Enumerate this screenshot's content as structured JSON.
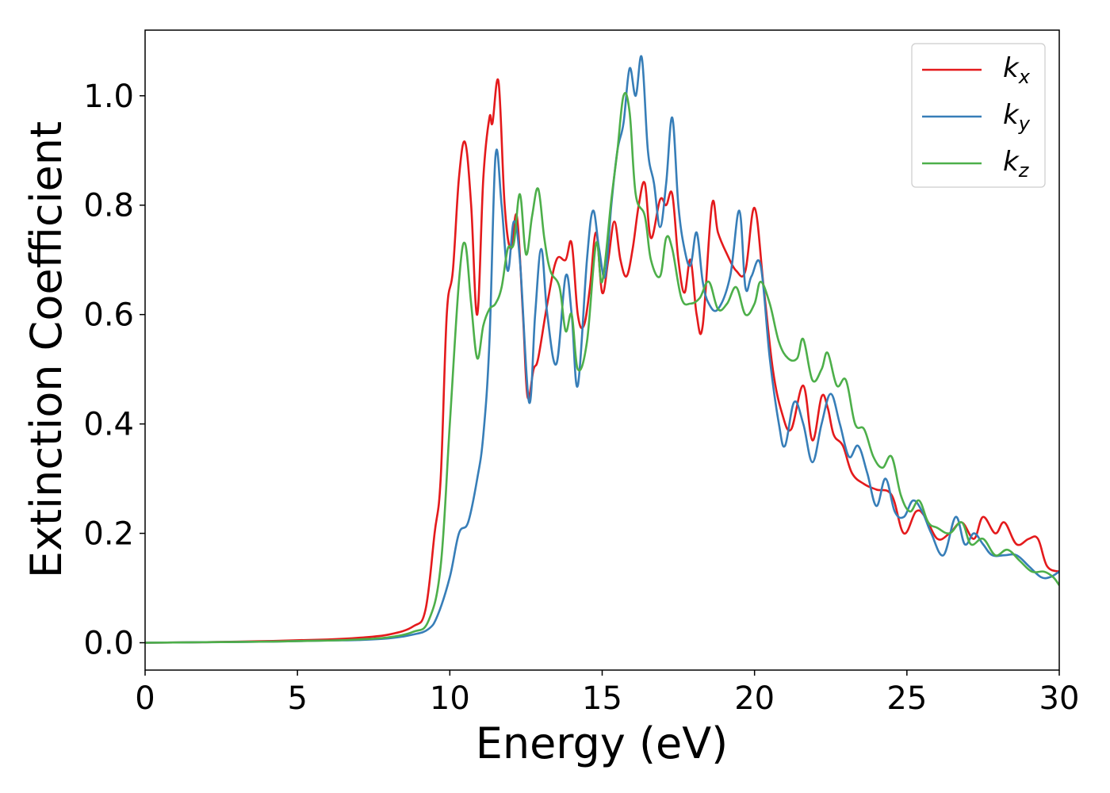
{
  "chart_data": {
    "type": "line",
    "xlabel": "Energy (eV)",
    "ylabel": "Extinction Coefficient",
    "xlim": [
      0,
      30
    ],
    "ylim": [
      -0.05,
      1.12
    ],
    "x_ticks": [
      "0",
      "5",
      "10",
      "15",
      "20",
      "25",
      "30"
    ],
    "y_ticks": [
      "0.0",
      "0.2",
      "0.4",
      "0.6",
      "0.8",
      "1.0"
    ],
    "grid": false,
    "legend_position": "top-right",
    "series": [
      {
        "name": "k",
        "name_sub": "x",
        "color": "#e41a1c",
        "points": [
          [
            0,
            0.0
          ],
          [
            2,
            0.001
          ],
          [
            4,
            0.003
          ],
          [
            6,
            0.006
          ],
          [
            7,
            0.009
          ],
          [
            8,
            0.015
          ],
          [
            8.8,
            0.03
          ],
          [
            9.2,
            0.06
          ],
          [
            9.5,
            0.2
          ],
          [
            9.7,
            0.3
          ],
          [
            9.9,
            0.6
          ],
          [
            10.1,
            0.68
          ],
          [
            10.3,
            0.85
          ],
          [
            10.5,
            0.915
          ],
          [
            10.7,
            0.8
          ],
          [
            10.9,
            0.6
          ],
          [
            11.1,
            0.85
          ],
          [
            11.3,
            0.96
          ],
          [
            11.4,
            0.95
          ],
          [
            11.6,
            1.025
          ],
          [
            11.8,
            0.8
          ],
          [
            12.0,
            0.72
          ],
          [
            12.2,
            0.78
          ],
          [
            12.4,
            0.6
          ],
          [
            12.55,
            0.45
          ],
          [
            12.75,
            0.5
          ],
          [
            12.9,
            0.52
          ],
          [
            13.2,
            0.62
          ],
          [
            13.5,
            0.7
          ],
          [
            13.8,
            0.7
          ],
          [
            14.0,
            0.73
          ],
          [
            14.2,
            0.6
          ],
          [
            14.4,
            0.58
          ],
          [
            14.6,
            0.65
          ],
          [
            14.8,
            0.75
          ],
          [
            15.0,
            0.64
          ],
          [
            15.2,
            0.7
          ],
          [
            15.4,
            0.77
          ],
          [
            15.6,
            0.7
          ],
          [
            15.8,
            0.67
          ],
          [
            16.0,
            0.72
          ],
          [
            16.2,
            0.8
          ],
          [
            16.4,
            0.84
          ],
          [
            16.6,
            0.74
          ],
          [
            16.9,
            0.81
          ],
          [
            17.1,
            0.8
          ],
          [
            17.3,
            0.82
          ],
          [
            17.5,
            0.7
          ],
          [
            17.7,
            0.64
          ],
          [
            17.9,
            0.7
          ],
          [
            18.1,
            0.6
          ],
          [
            18.3,
            0.58
          ],
          [
            18.6,
            0.8
          ],
          [
            18.8,
            0.75
          ],
          [
            19.1,
            0.71
          ],
          [
            19.4,
            0.68
          ],
          [
            19.7,
            0.68
          ],
          [
            20.0,
            0.795
          ],
          [
            20.3,
            0.65
          ],
          [
            20.6,
            0.5
          ],
          [
            20.9,
            0.42
          ],
          [
            21.2,
            0.39
          ],
          [
            21.6,
            0.47
          ],
          [
            21.9,
            0.37
          ],
          [
            22.2,
            0.45
          ],
          [
            22.4,
            0.43
          ],
          [
            22.6,
            0.38
          ],
          [
            22.9,
            0.36
          ],
          [
            23.2,
            0.31
          ],
          [
            23.6,
            0.29
          ],
          [
            24.0,
            0.28
          ],
          [
            24.5,
            0.27
          ],
          [
            24.9,
            0.2
          ],
          [
            25.3,
            0.24
          ],
          [
            25.6,
            0.23
          ],
          [
            26.0,
            0.19
          ],
          [
            26.4,
            0.2
          ],
          [
            26.8,
            0.22
          ],
          [
            27.2,
            0.19
          ],
          [
            27.5,
            0.23
          ],
          [
            27.9,
            0.2
          ],
          [
            28.2,
            0.22
          ],
          [
            28.6,
            0.18
          ],
          [
            29.0,
            0.19
          ],
          [
            29.3,
            0.19
          ],
          [
            29.6,
            0.14
          ],
          [
            30.0,
            0.13
          ]
        ]
      },
      {
        "name": "k",
        "name_sub": "y",
        "color": "#377eb8",
        "points": [
          [
            0,
            0.0
          ],
          [
            2,
            0.001
          ],
          [
            4,
            0.002
          ],
          [
            6,
            0.004
          ],
          [
            7,
            0.005
          ],
          [
            8,
            0.008
          ],
          [
            8.8,
            0.015
          ],
          [
            9.3,
            0.025
          ],
          [
            9.6,
            0.05
          ],
          [
            10.0,
            0.12
          ],
          [
            10.3,
            0.2
          ],
          [
            10.6,
            0.22
          ],
          [
            10.9,
            0.3
          ],
          [
            11.1,
            0.38
          ],
          [
            11.3,
            0.55
          ],
          [
            11.5,
            0.89
          ],
          [
            11.7,
            0.8
          ],
          [
            11.9,
            0.68
          ],
          [
            12.1,
            0.77
          ],
          [
            12.3,
            0.7
          ],
          [
            12.6,
            0.44
          ],
          [
            12.8,
            0.6
          ],
          [
            13.0,
            0.72
          ],
          [
            13.2,
            0.6
          ],
          [
            13.5,
            0.51
          ],
          [
            13.8,
            0.67
          ],
          [
            14.0,
            0.6
          ],
          [
            14.2,
            0.47
          ],
          [
            14.5,
            0.7
          ],
          [
            14.7,
            0.79
          ],
          [
            14.9,
            0.72
          ],
          [
            15.1,
            0.67
          ],
          [
            15.3,
            0.8
          ],
          [
            15.5,
            0.9
          ],
          [
            15.7,
            0.95
          ],
          [
            15.9,
            1.05
          ],
          [
            16.1,
            1.0
          ],
          [
            16.3,
            1.07
          ],
          [
            16.5,
            0.9
          ],
          [
            16.7,
            0.84
          ],
          [
            16.9,
            0.76
          ],
          [
            17.1,
            0.84
          ],
          [
            17.3,
            0.96
          ],
          [
            17.5,
            0.8
          ],
          [
            17.7,
            0.72
          ],
          [
            17.9,
            0.69
          ],
          [
            18.1,
            0.75
          ],
          [
            18.3,
            0.66
          ],
          [
            18.5,
            0.62
          ],
          [
            18.8,
            0.61
          ],
          [
            19.2,
            0.67
          ],
          [
            19.5,
            0.79
          ],
          [
            19.7,
            0.65
          ],
          [
            19.9,
            0.67
          ],
          [
            20.2,
            0.69
          ],
          [
            20.5,
            0.52
          ],
          [
            20.8,
            0.4
          ],
          [
            21.0,
            0.36
          ],
          [
            21.3,
            0.44
          ],
          [
            21.6,
            0.4
          ],
          [
            21.9,
            0.33
          ],
          [
            22.2,
            0.4
          ],
          [
            22.5,
            0.455
          ],
          [
            22.8,
            0.4
          ],
          [
            23.1,
            0.34
          ],
          [
            23.4,
            0.36
          ],
          [
            23.7,
            0.31
          ],
          [
            24.0,
            0.25
          ],
          [
            24.3,
            0.3
          ],
          [
            24.6,
            0.24
          ],
          [
            24.9,
            0.23
          ],
          [
            25.2,
            0.26
          ],
          [
            25.5,
            0.24
          ],
          [
            25.8,
            0.2
          ],
          [
            26.2,
            0.16
          ],
          [
            26.6,
            0.23
          ],
          [
            26.9,
            0.18
          ],
          [
            27.2,
            0.2
          ],
          [
            27.5,
            0.18
          ],
          [
            27.8,
            0.16
          ],
          [
            28.2,
            0.16
          ],
          [
            28.6,
            0.16
          ],
          [
            29.0,
            0.14
          ],
          [
            29.4,
            0.12
          ],
          [
            29.7,
            0.12
          ],
          [
            30.0,
            0.13
          ]
        ]
      },
      {
        "name": "k",
        "name_sub": "z",
        "color": "#4daf4a",
        "points": [
          [
            0,
            0.0
          ],
          [
            2,
            0.001
          ],
          [
            4,
            0.002
          ],
          [
            6,
            0.004
          ],
          [
            7,
            0.006
          ],
          [
            8,
            0.01
          ],
          [
            8.8,
            0.02
          ],
          [
            9.3,
            0.04
          ],
          [
            9.7,
            0.14
          ],
          [
            10.0,
            0.4
          ],
          [
            10.3,
            0.66
          ],
          [
            10.5,
            0.73
          ],
          [
            10.7,
            0.62
          ],
          [
            10.9,
            0.52
          ],
          [
            11.1,
            0.58
          ],
          [
            11.3,
            0.61
          ],
          [
            11.5,
            0.62
          ],
          [
            11.7,
            0.65
          ],
          [
            11.9,
            0.72
          ],
          [
            12.1,
            0.73
          ],
          [
            12.3,
            0.82
          ],
          [
            12.5,
            0.71
          ],
          [
            12.7,
            0.78
          ],
          [
            12.9,
            0.83
          ],
          [
            13.1,
            0.74
          ],
          [
            13.3,
            0.68
          ],
          [
            13.6,
            0.65
          ],
          [
            13.8,
            0.57
          ],
          [
            14.0,
            0.6
          ],
          [
            14.2,
            0.5
          ],
          [
            14.5,
            0.55
          ],
          [
            14.8,
            0.73
          ],
          [
            15.0,
            0.66
          ],
          [
            15.3,
            0.81
          ],
          [
            15.5,
            0.9
          ],
          [
            15.7,
            1.0
          ],
          [
            15.9,
            0.97
          ],
          [
            16.1,
            0.82
          ],
          [
            16.4,
            0.78
          ],
          [
            16.6,
            0.7
          ],
          [
            16.9,
            0.67
          ],
          [
            17.1,
            0.74
          ],
          [
            17.3,
            0.72
          ],
          [
            17.6,
            0.63
          ],
          [
            17.9,
            0.62
          ],
          [
            18.2,
            0.63
          ],
          [
            18.5,
            0.66
          ],
          [
            18.8,
            0.61
          ],
          [
            19.1,
            0.62
          ],
          [
            19.4,
            0.65
          ],
          [
            19.7,
            0.6
          ],
          [
            20.0,
            0.62
          ],
          [
            20.2,
            0.66
          ],
          [
            20.5,
            0.62
          ],
          [
            20.8,
            0.55
          ],
          [
            21.1,
            0.52
          ],
          [
            21.4,
            0.52
          ],
          [
            21.6,
            0.555
          ],
          [
            21.9,
            0.48
          ],
          [
            22.2,
            0.5
          ],
          [
            22.4,
            0.53
          ],
          [
            22.7,
            0.47
          ],
          [
            23.0,
            0.48
          ],
          [
            23.3,
            0.4
          ],
          [
            23.6,
            0.39
          ],
          [
            23.9,
            0.34
          ],
          [
            24.2,
            0.32
          ],
          [
            24.5,
            0.34
          ],
          [
            24.8,
            0.27
          ],
          [
            25.1,
            0.24
          ],
          [
            25.4,
            0.26
          ],
          [
            25.7,
            0.22
          ],
          [
            26.0,
            0.21
          ],
          [
            26.4,
            0.2
          ],
          [
            26.8,
            0.22
          ],
          [
            27.1,
            0.18
          ],
          [
            27.5,
            0.19
          ],
          [
            27.9,
            0.16
          ],
          [
            28.3,
            0.17
          ],
          [
            28.7,
            0.15
          ],
          [
            29.1,
            0.13
          ],
          [
            29.5,
            0.13
          ],
          [
            29.8,
            0.12
          ],
          [
            30.0,
            0.105
          ]
        ]
      }
    ]
  }
}
